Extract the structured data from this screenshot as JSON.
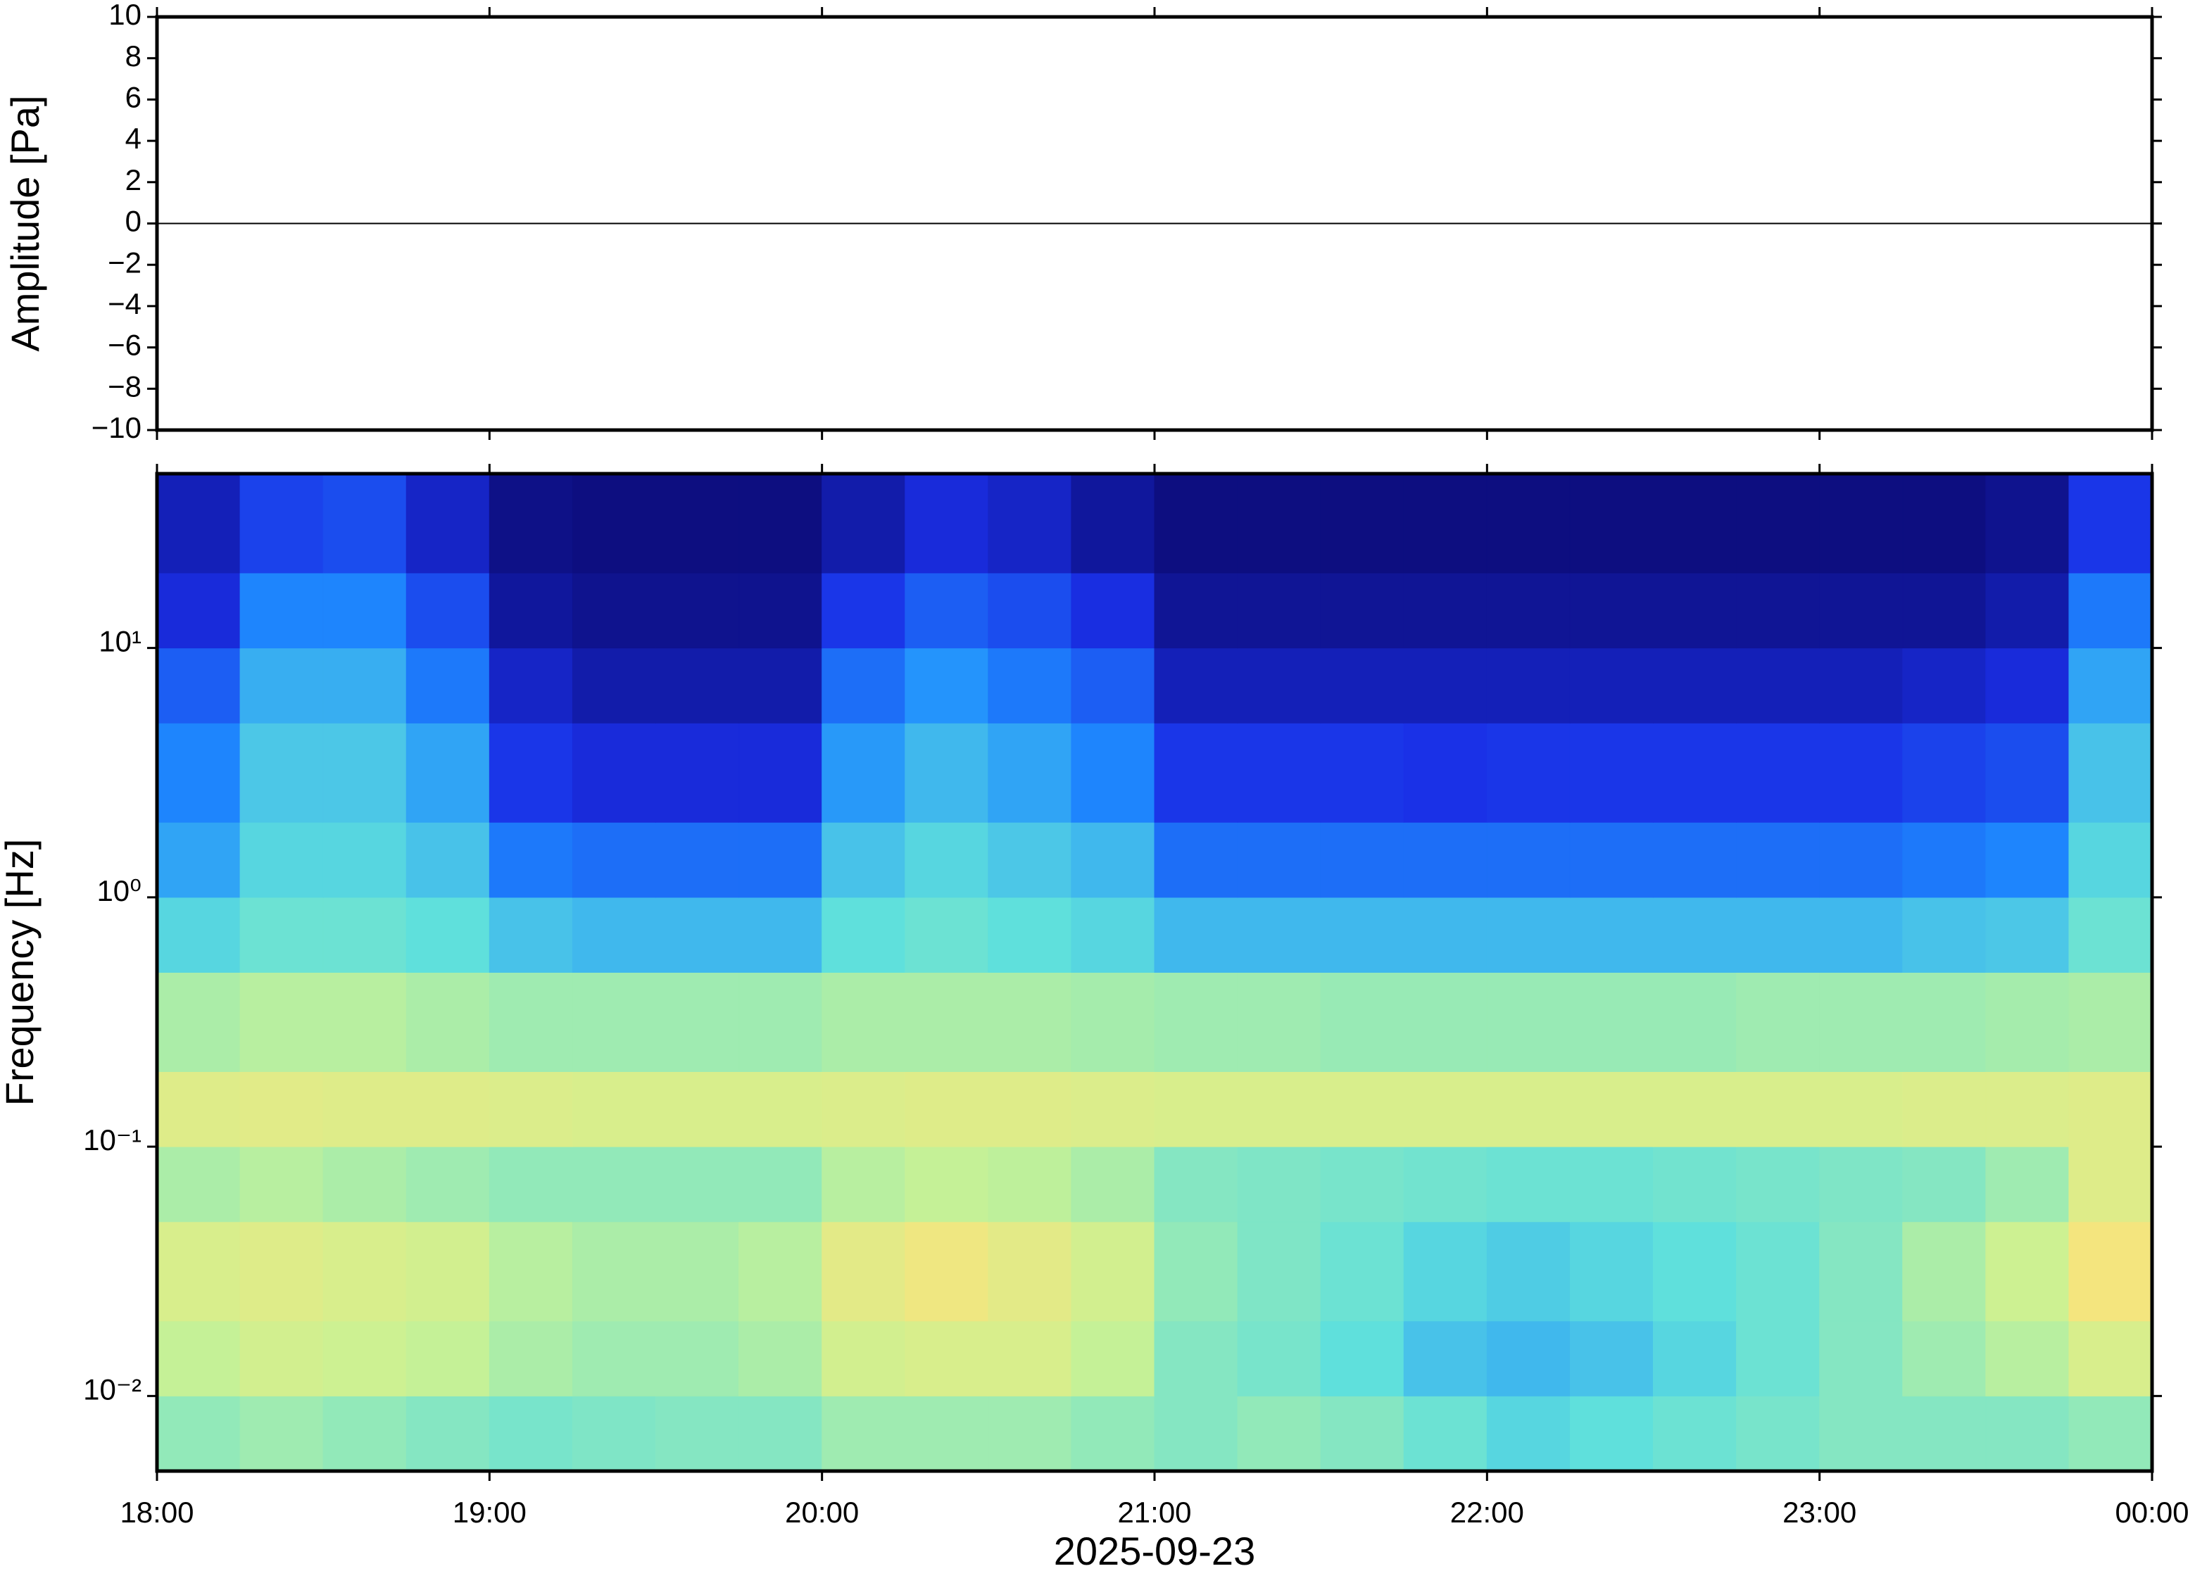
{
  "chart_data": [
    {
      "type": "line",
      "ylabel": "Amplitude [Pa]",
      "xlim": [
        18,
        24
      ],
      "xticks": [
        18,
        19,
        20,
        21,
        22,
        23,
        24
      ],
      "ylim": [
        -10,
        10
      ],
      "yticks": [
        {
          "value": -10,
          "label": "−10"
        },
        {
          "value": -8,
          "label": "−8"
        },
        {
          "value": -6,
          "label": "−6"
        },
        {
          "value": -4,
          "label": "−4"
        },
        {
          "value": -2,
          "label": "−2"
        },
        0,
        2,
        4,
        6,
        8,
        10
      ],
      "x": [
        18,
        18.5,
        19,
        19.5,
        20,
        20.5,
        21,
        21.5,
        22,
        22.5,
        23,
        23.5,
        24
      ],
      "series": [
        {
          "color": "#000000",
          "values": [
            0,
            0,
            0,
            0,
            0,
            0,
            0,
            0,
            0,
            0,
            0,
            0,
            0
          ]
        }
      ]
    },
    {
      "type": "heatmap",
      "ylabel": "Frequency [Hz]",
      "xlabel": "2025-09-23",
      "log_y": true,
      "xlim": [
        18,
        24
      ],
      "xticks": [
        {
          "value": 18,
          "label": "18:00"
        },
        {
          "value": 19,
          "label": "19:00"
        },
        {
          "value": 20,
          "label": "20:00"
        },
        {
          "value": 21,
          "label": "21:00"
        },
        {
          "value": 22,
          "label": "22:00"
        },
        {
          "value": 23,
          "label": "23:00"
        },
        {
          "value": 24,
          "label": "00:00"
        }
      ],
      "ylim": [
        0.005,
        50
      ],
      "yticks": [
        {
          "value": 0.01,
          "label": "10⁻²"
        },
        {
          "value": 0.1,
          "label": "10⁻¹"
        },
        {
          "value": 1,
          "label": "10⁰"
        },
        {
          "value": 10,
          "label": "10¹"
        }
      ],
      "xbins": [
        18,
        18.25,
        18.5,
        18.75,
        19,
        19.25,
        19.5,
        19.75,
        20,
        20.25,
        20.5,
        20.75,
        21,
        21.25,
        21.5,
        21.75,
        22,
        22.25,
        22.5,
        22.75,
        23,
        23.25,
        23.5,
        23.75,
        24
      ],
      "ybins": [
        0.005,
        0.01,
        0.02,
        0.05,
        0.1,
        0.2,
        0.5,
        1,
        2,
        5,
        10,
        20,
        50
      ],
      "colormap": [
        "#0b0a72",
        "#1a2fe6",
        "#1e8cff",
        "#5fe0dc",
        "#c9f294",
        "#f8e47c",
        "#ffb04c"
      ],
      "z": [
        [
          0.58,
          0.6,
          0.58,
          0.56,
          0.54,
          0.55,
          0.56,
          0.56,
          0.6,
          0.6,
          0.6,
          0.58,
          0.56,
          0.58,
          0.56,
          0.52,
          0.48,
          0.5,
          0.52,
          0.54,
          0.56,
          0.56,
          0.56,
          0.58
        ],
        [
          0.66,
          0.7,
          0.68,
          0.66,
          0.62,
          0.6,
          0.6,
          0.62,
          0.7,
          0.72,
          0.72,
          0.66,
          0.56,
          0.54,
          0.5,
          0.44,
          0.42,
          0.44,
          0.48,
          0.52,
          0.56,
          0.6,
          0.64,
          0.72
        ],
        [
          0.72,
          0.74,
          0.72,
          0.7,
          0.64,
          0.62,
          0.62,
          0.64,
          0.76,
          0.8,
          0.76,
          0.7,
          0.58,
          0.55,
          0.52,
          0.48,
          0.46,
          0.48,
          0.5,
          0.52,
          0.56,
          0.62,
          0.68,
          0.82
        ],
        [
          0.62,
          0.64,
          0.62,
          0.6,
          0.58,
          0.58,
          0.58,
          0.58,
          0.64,
          0.66,
          0.65,
          0.62,
          0.56,
          0.55,
          0.54,
          0.53,
          0.52,
          0.52,
          0.53,
          0.54,
          0.55,
          0.56,
          0.6,
          0.74
        ],
        [
          0.74,
          0.75,
          0.74,
          0.74,
          0.73,
          0.72,
          0.72,
          0.72,
          0.73,
          0.74,
          0.74,
          0.73,
          0.72,
          0.72,
          0.72,
          0.72,
          0.72,
          0.72,
          0.72,
          0.72,
          0.72,
          0.73,
          0.73,
          0.74
        ],
        [
          0.62,
          0.64,
          0.64,
          0.62,
          0.6,
          0.6,
          0.6,
          0.6,
          0.62,
          0.62,
          0.62,
          0.61,
          0.6,
          0.6,
          0.59,
          0.59,
          0.59,
          0.59,
          0.59,
          0.6,
          0.6,
          0.6,
          0.61,
          0.62
        ],
        [
          0.48,
          0.52,
          0.52,
          0.5,
          0.44,
          0.42,
          0.42,
          0.42,
          0.5,
          0.52,
          0.5,
          0.48,
          0.42,
          0.42,
          0.42,
          0.42,
          0.42,
          0.42,
          0.42,
          0.42,
          0.42,
          0.44,
          0.45,
          0.52
        ],
        [
          0.38,
          0.48,
          0.48,
          0.44,
          0.3,
          0.28,
          0.28,
          0.28,
          0.44,
          0.48,
          0.45,
          0.42,
          0.28,
          0.28,
          0.28,
          0.28,
          0.28,
          0.28,
          0.28,
          0.28,
          0.28,
          0.3,
          0.32,
          0.48
        ],
        [
          0.32,
          0.45,
          0.45,
          0.38,
          0.18,
          0.15,
          0.15,
          0.15,
          0.36,
          0.42,
          0.38,
          0.32,
          0.18,
          0.18,
          0.18,
          0.17,
          0.18,
          0.18,
          0.18,
          0.18,
          0.18,
          0.2,
          0.22,
          0.44
        ],
        [
          0.25,
          0.4,
          0.4,
          0.3,
          0.12,
          0.08,
          0.08,
          0.08,
          0.28,
          0.35,
          0.3,
          0.25,
          0.1,
          0.1,
          0.1,
          0.1,
          0.1,
          0.1,
          0.1,
          0.1,
          0.1,
          0.12,
          0.15,
          0.38
        ],
        [
          0.15,
          0.32,
          0.32,
          0.22,
          0.06,
          0.04,
          0.04,
          0.04,
          0.18,
          0.25,
          0.22,
          0.16,
          0.05,
          0.05,
          0.05,
          0.05,
          0.05,
          0.05,
          0.05,
          0.05,
          0.05,
          0.05,
          0.08,
          0.3
        ],
        [
          0.1,
          0.2,
          0.22,
          0.12,
          0.03,
          0.02,
          0.02,
          0.02,
          0.08,
          0.15,
          0.12,
          0.06,
          0.02,
          0.02,
          0.02,
          0.02,
          0.02,
          0.02,
          0.02,
          0.02,
          0.02,
          0.02,
          0.04,
          0.18
        ]
      ]
    }
  ]
}
